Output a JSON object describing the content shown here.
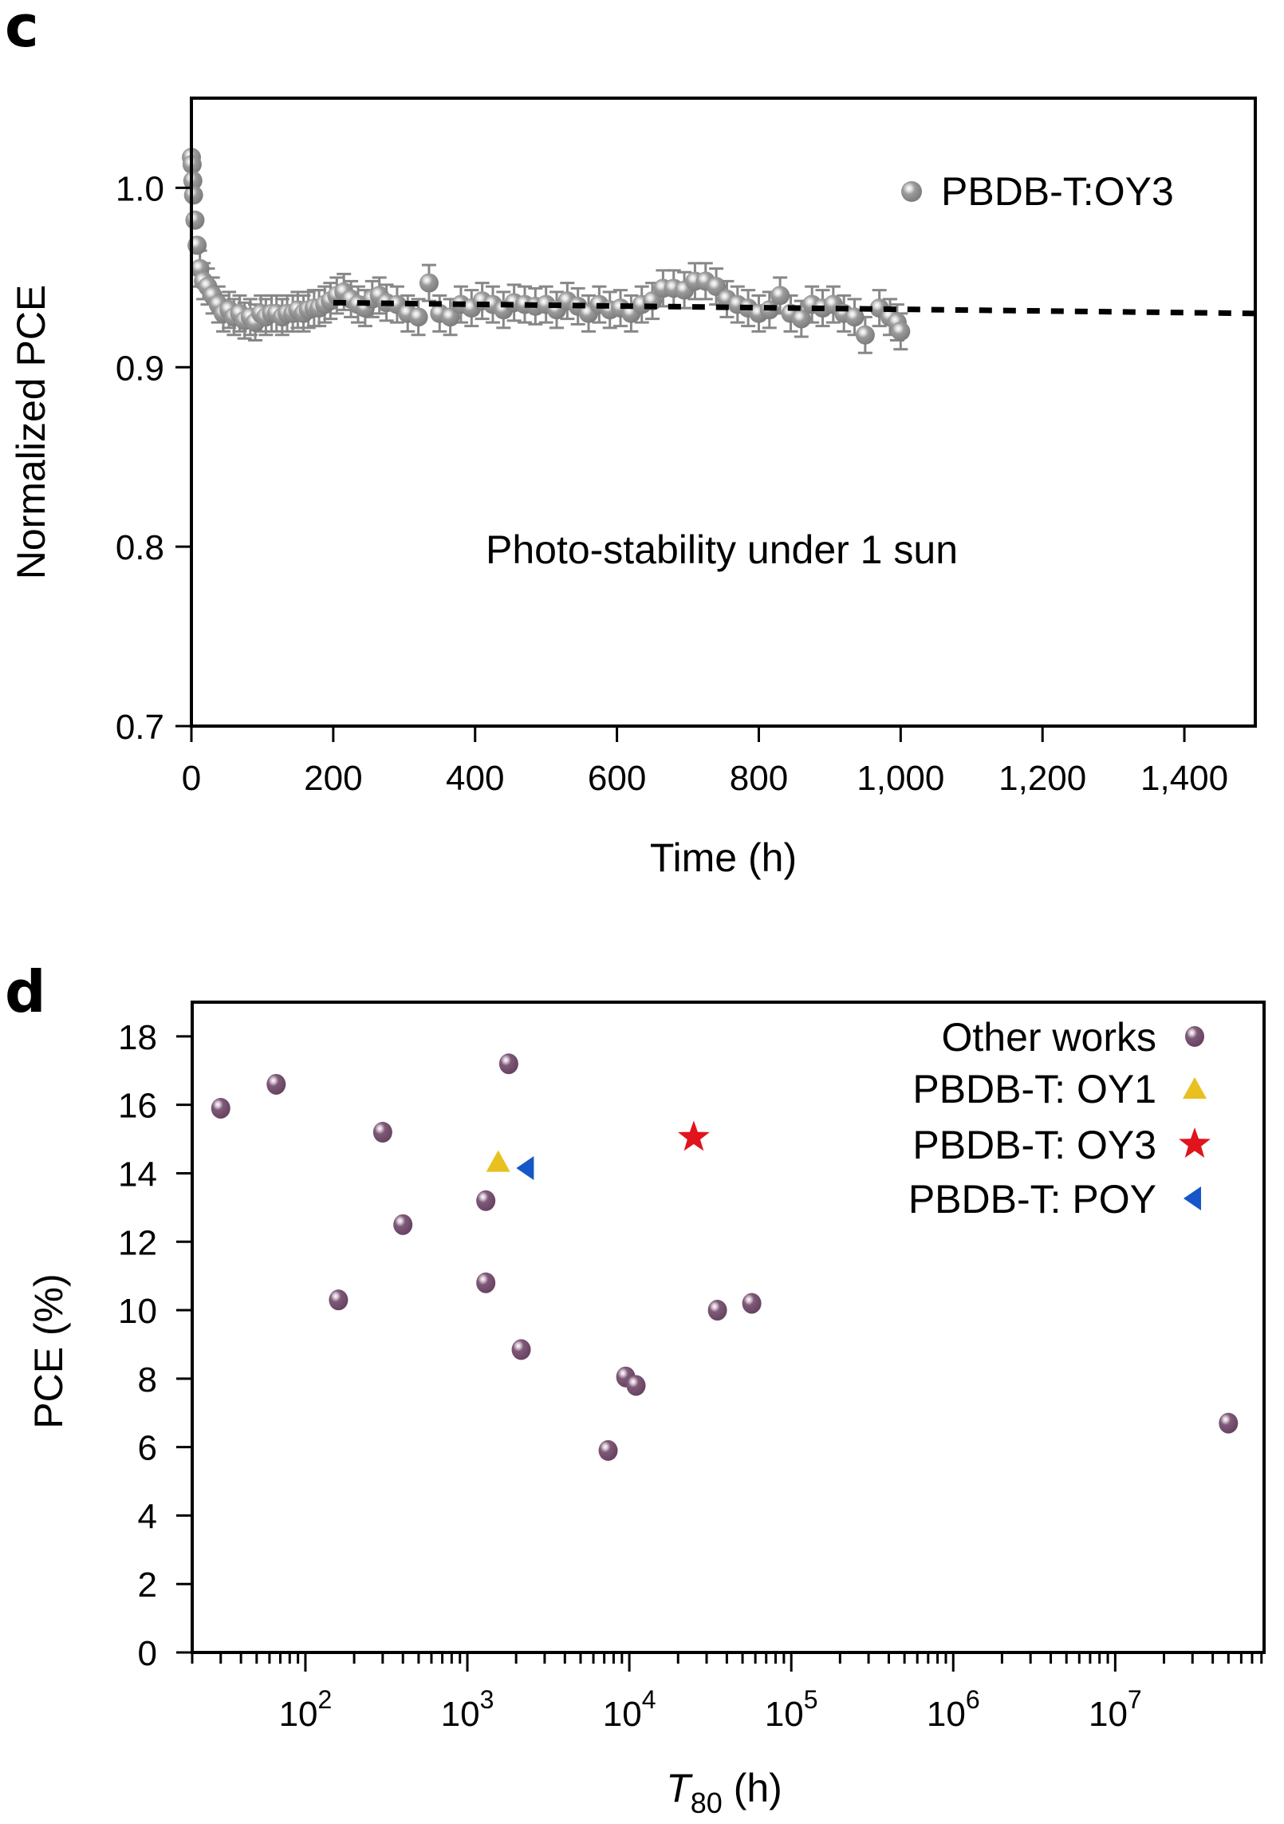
{
  "chart_data": [
    {
      "panel": "c",
      "type": "scatter",
      "xlabel": "Time (h)",
      "ylabel": "Normalized PCE",
      "xlim": [
        0,
        1500
      ],
      "ylim": [
        0.7,
        1.05
      ],
      "xticks": [
        0,
        200,
        400,
        600,
        800,
        1000,
        1200,
        1400
      ],
      "xtick_labels": [
        "0",
        "200",
        "400",
        "600",
        "800",
        "1,000",
        "1,200",
        "1,400"
      ],
      "yticks": [
        0.7,
        0.8,
        0.9,
        1.0
      ],
      "ytick_labels": [
        "0.7",
        "0.8",
        "0.9",
        "1.0"
      ],
      "grid": false,
      "legend": {
        "position": "top-right",
        "entries": [
          {
            "label": "PBDB-T:OY3",
            "marker": "sphere",
            "color": "#8a8a8a"
          }
        ]
      },
      "annotation": "Photo-stability under 1 sun",
      "series": [
        {
          "name": "PBDB-T:OY3",
          "color": "#8a8a8a",
          "error": 0.01,
          "x": [
            0,
            1,
            2,
            3,
            5,
            8,
            12,
            17,
            23,
            30,
            38,
            45,
            53,
            60,
            68,
            75,
            83,
            90,
            98,
            105,
            113,
            120,
            128,
            135,
            143,
            150,
            158,
            165,
            173,
            180,
            188,
            196,
            205,
            215,
            225,
            235,
            245,
            255,
            265,
            275,
            290,
            305,
            320,
            335,
            350,
            365,
            380,
            395,
            410,
            425,
            440,
            455,
            470,
            485,
            500,
            515,
            530,
            545,
            560,
            575,
            590,
            605,
            620,
            635,
            650,
            665,
            680,
            695,
            710,
            725,
            740,
            755,
            770,
            785,
            800,
            815,
            830,
            845,
            860,
            875,
            890,
            905,
            920,
            935,
            950,
            970,
            985,
            995,
            1000
          ],
          "y": [
            1.017,
            1.013,
            1.004,
            0.996,
            0.982,
            0.968,
            0.955,
            0.948,
            0.945,
            0.94,
            0.935,
            0.93,
            0.932,
            0.928,
            0.93,
            0.926,
            0.928,
            0.925,
            0.93,
            0.928,
            0.93,
            0.93,
            0.928,
            0.93,
            0.93,
            0.932,
            0.93,
            0.932,
            0.933,
            0.933,
            0.935,
            0.937,
            0.94,
            0.942,
            0.938,
            0.935,
            0.933,
            0.938,
            0.94,
            0.936,
            0.935,
            0.93,
            0.928,
            0.947,
            0.93,
            0.928,
            0.935,
            0.933,
            0.937,
            0.935,
            0.932,
            0.936,
            0.935,
            0.934,
            0.935,
            0.932,
            0.937,
            0.934,
            0.93,
            0.935,
            0.932,
            0.933,
            0.93,
            0.935,
            0.937,
            0.944,
            0.944,
            0.943,
            0.948,
            0.948,
            0.945,
            0.938,
            0.935,
            0.933,
            0.93,
            0.932,
            0.94,
            0.93,
            0.927,
            0.935,
            0.933,
            0.935,
            0.93,
            0.928,
            0.918,
            0.933,
            0.928,
            0.925,
            0.92
          ]
        },
        {
          "name": "fit",
          "style": "dotted",
          "color": "#000000",
          "x": [
            200,
            1500
          ],
          "y": [
            0.936,
            0.93
          ]
        }
      ]
    },
    {
      "panel": "d",
      "type": "scatter",
      "xlabel": "T80 (h)",
      "xlabel_main": "T",
      "xlabel_sub": "80",
      "xlabel_rest": " (h)",
      "ylabel": "PCE (%)",
      "xscale": "log",
      "xlim": [
        20,
        83000000
      ],
      "ylim": [
        0,
        19
      ],
      "xticks": [
        100,
        1000,
        10000,
        100000,
        1000000,
        10000000
      ],
      "xtick_labels": [
        {
          "base": "10",
          "exp": "2"
        },
        {
          "base": "10",
          "exp": "3"
        },
        {
          "base": "10",
          "exp": "4"
        },
        {
          "base": "10",
          "exp": "5"
        },
        {
          "base": "10",
          "exp": "6"
        },
        {
          "base": "10",
          "exp": "7"
        }
      ],
      "yticks": [
        0,
        2,
        4,
        6,
        8,
        10,
        12,
        14,
        16,
        18
      ],
      "ytick_labels": [
        "0",
        "2",
        "4",
        "6",
        "8",
        "10",
        "12",
        "14",
        "16",
        "18"
      ],
      "grid": false,
      "legend": {
        "position": "top-right",
        "entries": [
          {
            "label": "Other works",
            "marker": "sphere",
            "color": "#7a5575"
          },
          {
            "label": "PBDB-T: OY1",
            "marker": "triangle-up",
            "color": "#e8c020"
          },
          {
            "label": "PBDB-T: OY3",
            "marker": "star",
            "color": "#e0141c"
          },
          {
            "label": "PBDB-T: POY",
            "marker": "triangle-left",
            "color": "#1556c8"
          }
        ]
      },
      "series": [
        {
          "name": "Other works",
          "marker": "sphere",
          "color": "#7a5575",
          "x": [
            30,
            66,
            160,
            300,
            400,
            1300,
            1300,
            1800,
            2150,
            7400,
            9500,
            11000,
            35000,
            57000,
            50000000
          ],
          "y": [
            15.9,
            16.6,
            10.3,
            15.2,
            12.5,
            13.2,
            10.8,
            17.2,
            8.85,
            5.9,
            8.05,
            7.8,
            10.0,
            10.2,
            6.7
          ]
        },
        {
          "name": "PBDB-T: OY1",
          "marker": "triangle-up",
          "color": "#e8c020",
          "x": [
            1550
          ],
          "y": [
            14.3
          ]
        },
        {
          "name": "PBDB-T: OY3",
          "marker": "star",
          "color": "#e0141c",
          "x": [
            25000
          ],
          "y": [
            15.05
          ]
        },
        {
          "name": "PBDB-T: POY",
          "marker": "triangle-left",
          "color": "#1556c8",
          "x": [
            2350
          ],
          "y": [
            14.15
          ]
        }
      ]
    }
  ],
  "panels": {
    "c_label": "c",
    "d_label": "d"
  }
}
